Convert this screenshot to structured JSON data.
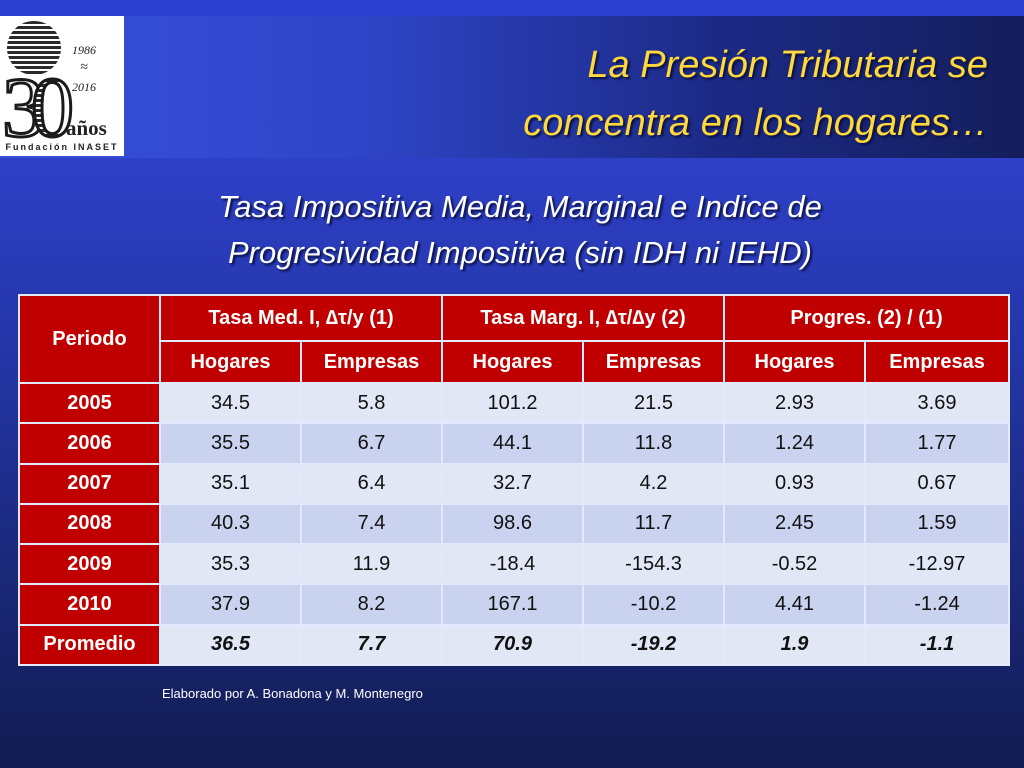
{
  "logo": {
    "digits_3": "3",
    "digits_0": "0",
    "year_start": "1986",
    "approx": "≈",
    "year_end": "2016",
    "anos": "años",
    "foundation": "Fundación INASET"
  },
  "title": {
    "line1": "La Presión Tributaria se",
    "line2": "concentra en los hogares…"
  },
  "subtitle": {
    "line1": "Tasa Impositiva Media, Marginal e Indice de",
    "line2": "Progresividad Impositiva (sin IDH ni IEHD)"
  },
  "table": {
    "period_header": "Periodo",
    "groups": [
      "Tasa Med. I, ∆τ/y  (1)",
      "Tasa Marg. I, ∆τ/∆y  (2)",
      "Progres. (2) / (1)"
    ],
    "subheaders": [
      "Hogares",
      "Empresas",
      "Hogares",
      "Empresas",
      "Hogares",
      "Empresas"
    ],
    "rows": [
      {
        "period": "2005",
        "values": [
          "34.5",
          "5.8",
          "101.2",
          "21.5",
          "2.93",
          "3.69"
        ]
      },
      {
        "period": "2006",
        "values": [
          "35.5",
          "6.7",
          "44.1",
          "11.8",
          "1.24",
          "1.77"
        ]
      },
      {
        "period": "2007",
        "values": [
          "35.1",
          "6.4",
          "32.7",
          "4.2",
          "0.93",
          "0.67"
        ]
      },
      {
        "period": "2008",
        "values": [
          "40.3",
          "7.4",
          "98.6",
          "11.7",
          "2.45",
          "1.59"
        ]
      },
      {
        "period": "2009",
        "values": [
          "35.3",
          "11.9",
          "-18.4",
          "-154.3",
          "-0.52",
          "-12.97"
        ]
      },
      {
        "period": "2010",
        "values": [
          "37.9",
          "8.2",
          "167.1",
          "-10.2",
          "4.41",
          "-1.24"
        ]
      },
      {
        "period": "Promedio",
        "values": [
          "36.5",
          "7.7",
          "70.9",
          "-19.2",
          "1.9",
          "-1.1"
        ]
      }
    ]
  },
  "credit": "Elaborado por A. Bonadona y M. Montenegro",
  "colors": {
    "title_yellow": "#ffd83a",
    "header_red": "#c00000",
    "cell_light": "#e2e7f6",
    "cell_alt": "#c9d2ee",
    "background_blue": "#2436a8"
  }
}
